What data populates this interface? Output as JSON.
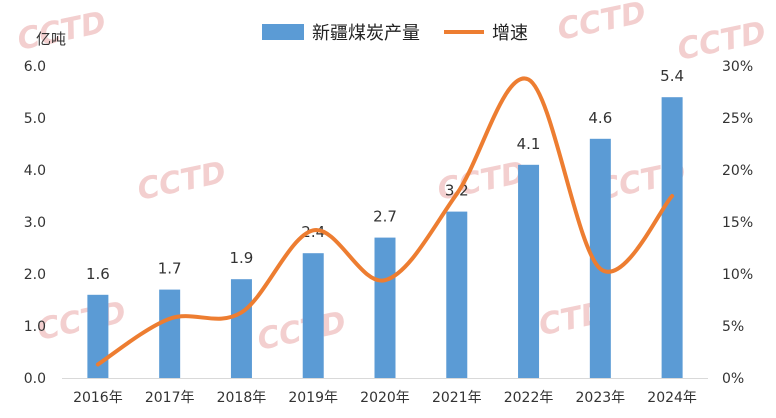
{
  "chart_data": {
    "type": "bar+line",
    "title": "",
    "y_left_unit": "亿吨",
    "y_left_ticks": [
      "0.0",
      "1.0",
      "2.0",
      "3.0",
      "4.0",
      "5.0",
      "6.0"
    ],
    "y_left_lim": [
      0,
      6
    ],
    "y_right_ticks": [
      "0%",
      "5%",
      "10%",
      "15%",
      "20%",
      "25%",
      "30%"
    ],
    "y_right_lim": [
      0,
      30
    ],
    "categories": [
      "2016年",
      "2017年",
      "2018年",
      "2019年",
      "2020年",
      "2021年",
      "2022年",
      "2023年",
      "2024年"
    ],
    "series": [
      {
        "name": "新疆煤炭产量",
        "kind": "bar",
        "axis": "left",
        "values": [
          1.6,
          1.7,
          1.9,
          2.4,
          2.7,
          3.2,
          4.1,
          4.6,
          5.4
        ],
        "labels": [
          "1.6",
          "1.7",
          "1.9",
          "2.4",
          "2.7",
          "3.2",
          "4.1",
          "4.6",
          "5.4"
        ],
        "color": "#5b9bd5"
      },
      {
        "name": "增速",
        "kind": "line",
        "axis": "right",
        "values": [
          1.3,
          5.7,
          6.3,
          14.2,
          9.4,
          17.7,
          28.7,
          10.5,
          17.5
        ],
        "color": "#ed7d31"
      }
    ],
    "legend_position": "top-center",
    "grid": false
  },
  "watermark": "CCTD"
}
